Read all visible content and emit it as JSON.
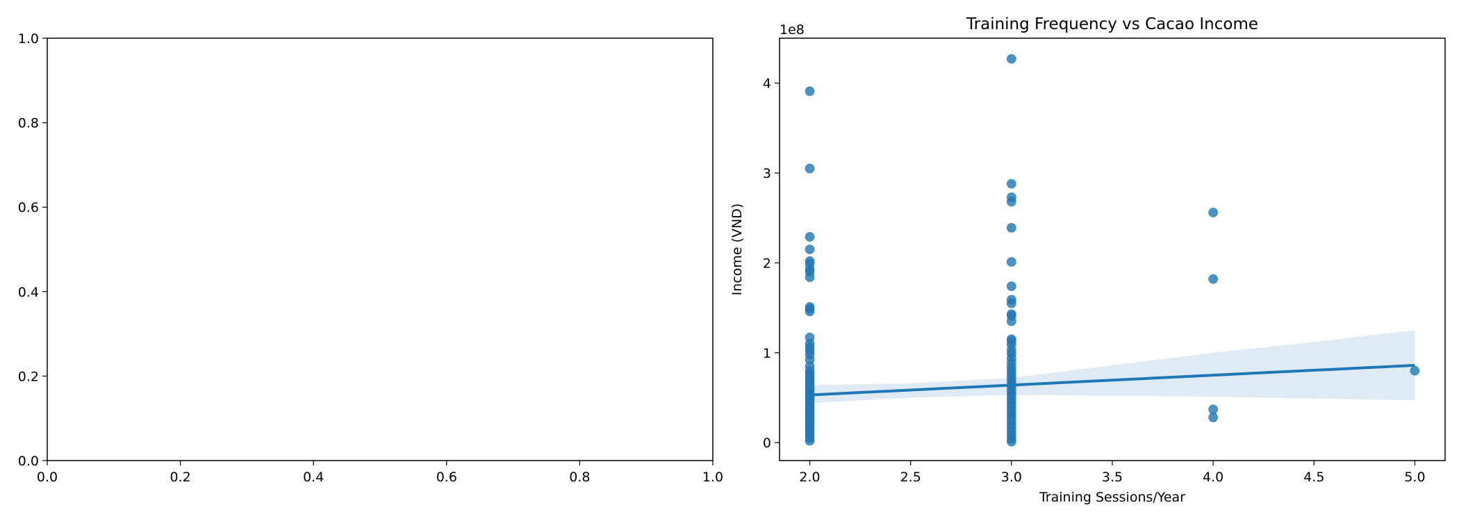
{
  "chart_data": [
    {
      "type": "scatter",
      "title": "",
      "xlabel": "",
      "ylabel": "",
      "xlim": [
        0.0,
        1.0
      ],
      "ylim": [
        0.0,
        1.0
      ],
      "xticks": [
        "0.0",
        "0.2",
        "0.4",
        "0.6",
        "0.8",
        "1.0"
      ],
      "yticks": [
        "0.0",
        "0.2",
        "0.4",
        "0.6",
        "0.8",
        "1.0"
      ],
      "points": []
    },
    {
      "type": "scatter",
      "title": "Training Frequency vs Cacao Income",
      "xlabel": "Training Sessions/Year",
      "ylabel": "Income (VND)",
      "y_offset_label": "1e8",
      "xlim": [
        1.85,
        5.15
      ],
      "ylim": [
        -0.2,
        4.5
      ],
      "xticks": [
        "2.0",
        "2.5",
        "3.0",
        "3.5",
        "4.0",
        "4.5",
        "5.0"
      ],
      "yticks": [
        "0",
        "1",
        "2",
        "3",
        "4"
      ],
      "point_color": "#1f77b4",
      "regression": {
        "x": [
          2.0,
          5.0
        ],
        "y": [
          0.53,
          0.86
        ],
        "ci_x": [
          2.0,
          2.5,
          3.0,
          3.5,
          4.0,
          4.5,
          5.0
        ],
        "ci_upper": [
          0.64,
          0.66,
          0.72,
          0.86,
          1.0,
          1.12,
          1.25
        ],
        "ci_lower": [
          0.44,
          0.5,
          0.53,
          0.52,
          0.51,
          0.49,
          0.47
        ]
      },
      "points": [
        {
          "x": 2,
          "y": 3.91
        },
        {
          "x": 2,
          "y": 3.05
        },
        {
          "x": 2,
          "y": 2.29
        },
        {
          "x": 2,
          "y": 2.15
        },
        {
          "x": 2,
          "y": 2.02
        },
        {
          "x": 2,
          "y": 1.99
        },
        {
          "x": 2,
          "y": 1.93
        },
        {
          "x": 2,
          "y": 1.9
        },
        {
          "x": 2,
          "y": 1.84
        },
        {
          "x": 2,
          "y": 1.51
        },
        {
          "x": 2,
          "y": 1.49
        },
        {
          "x": 2,
          "y": 1.46
        },
        {
          "x": 2,
          "y": 1.17
        },
        {
          "x": 2,
          "y": 1.1
        },
        {
          "x": 2,
          "y": 1.06
        },
        {
          "x": 2,
          "y": 1.02
        },
        {
          "x": 2,
          "y": 0.98
        },
        {
          "x": 2,
          "y": 0.92
        },
        {
          "x": 2,
          "y": 0.85
        },
        {
          "x": 2,
          "y": 0.8
        },
        {
          "x": 2,
          "y": 0.77
        },
        {
          "x": 2,
          "y": 0.74
        },
        {
          "x": 2,
          "y": 0.71
        },
        {
          "x": 2,
          "y": 0.68
        },
        {
          "x": 2,
          "y": 0.65
        },
        {
          "x": 2,
          "y": 0.62
        },
        {
          "x": 2,
          "y": 0.59
        },
        {
          "x": 2,
          "y": 0.56
        },
        {
          "x": 2,
          "y": 0.53
        },
        {
          "x": 2,
          "y": 0.5
        },
        {
          "x": 2,
          "y": 0.47
        },
        {
          "x": 2,
          "y": 0.44
        },
        {
          "x": 2,
          "y": 0.41
        },
        {
          "x": 2,
          "y": 0.38
        },
        {
          "x": 2,
          "y": 0.35
        },
        {
          "x": 2,
          "y": 0.32
        },
        {
          "x": 2,
          "y": 0.29
        },
        {
          "x": 2,
          "y": 0.26
        },
        {
          "x": 2,
          "y": 0.23
        },
        {
          "x": 2,
          "y": 0.2
        },
        {
          "x": 2,
          "y": 0.17
        },
        {
          "x": 2,
          "y": 0.14
        },
        {
          "x": 2,
          "y": 0.11
        },
        {
          "x": 2,
          "y": 0.08
        },
        {
          "x": 2,
          "y": 0.05
        },
        {
          "x": 2,
          "y": 0.02
        },
        {
          "x": 3,
          "y": 4.27
        },
        {
          "x": 3,
          "y": 2.88
        },
        {
          "x": 3,
          "y": 2.73
        },
        {
          "x": 3,
          "y": 2.68
        },
        {
          "x": 3,
          "y": 2.39
        },
        {
          "x": 3,
          "y": 2.01
        },
        {
          "x": 3,
          "y": 1.74
        },
        {
          "x": 3,
          "y": 1.59
        },
        {
          "x": 3,
          "y": 1.55
        },
        {
          "x": 3,
          "y": 1.43
        },
        {
          "x": 3,
          "y": 1.41
        },
        {
          "x": 3,
          "y": 1.35
        },
        {
          "x": 3,
          "y": 1.15
        },
        {
          "x": 3,
          "y": 1.13
        },
        {
          "x": 3,
          "y": 1.09
        },
        {
          "x": 3,
          "y": 1.03
        },
        {
          "x": 3,
          "y": 0.99
        },
        {
          "x": 3,
          "y": 0.94
        },
        {
          "x": 3,
          "y": 0.89
        },
        {
          "x": 3,
          "y": 0.84
        },
        {
          "x": 3,
          "y": 0.8
        },
        {
          "x": 3,
          "y": 0.76
        },
        {
          "x": 3,
          "y": 0.72
        },
        {
          "x": 3,
          "y": 0.68
        },
        {
          "x": 3,
          "y": 0.64
        },
        {
          "x": 3,
          "y": 0.6
        },
        {
          "x": 3,
          "y": 0.56
        },
        {
          "x": 3,
          "y": 0.52
        },
        {
          "x": 3,
          "y": 0.48
        },
        {
          "x": 3,
          "y": 0.44
        },
        {
          "x": 3,
          "y": 0.4
        },
        {
          "x": 3,
          "y": 0.36
        },
        {
          "x": 3,
          "y": 0.32
        },
        {
          "x": 3,
          "y": 0.28
        },
        {
          "x": 3,
          "y": 0.24
        },
        {
          "x": 3,
          "y": 0.2
        },
        {
          "x": 3,
          "y": 0.16
        },
        {
          "x": 3,
          "y": 0.12
        },
        {
          "x": 3,
          "y": 0.08
        },
        {
          "x": 3,
          "y": 0.04
        },
        {
          "x": 3,
          "y": 0.01
        },
        {
          "x": 4,
          "y": 2.56
        },
        {
          "x": 4,
          "y": 1.82
        },
        {
          "x": 4,
          "y": 0.37
        },
        {
          "x": 4,
          "y": 0.28
        },
        {
          "x": 5,
          "y": 0.8
        }
      ]
    }
  ]
}
